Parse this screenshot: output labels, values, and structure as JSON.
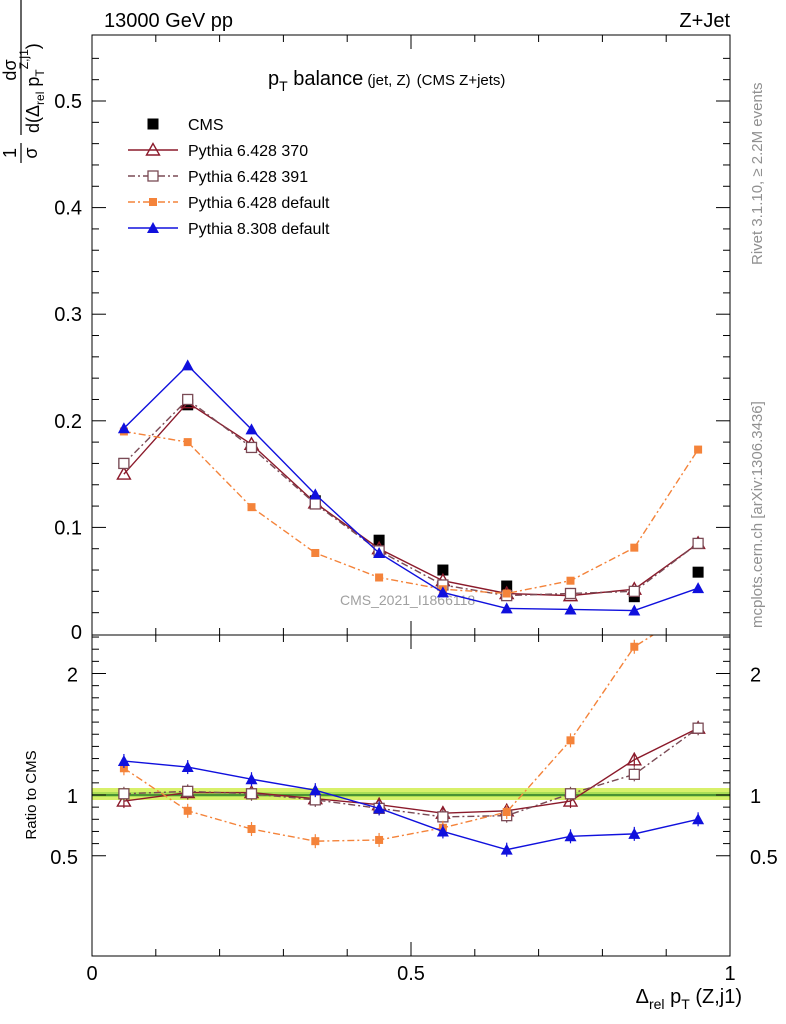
{
  "header": {
    "left": "13000 GeV pp",
    "right": "Z+Jet"
  },
  "side_text": {
    "rivet": "Rivet 3.1.10, ≥ 2.2M events",
    "mcplots": "mcplots.cern.ch [arXiv:1306.3436]"
  },
  "watermark": "CMS_2021_I1866118",
  "colors": {
    "cms": "#000000",
    "p370": "#8b1a2b",
    "p391": "#7a4a55",
    "p6def": "#f4833a",
    "p8def": "#1010dd",
    "band_outer": "#d8f06a",
    "band_inner": "#aade55",
    "ref_line": "#2a7a2a"
  },
  "chart_data": [
    {
      "type": "line",
      "title_main": "p",
      "title_sub": "T",
      "title_word": " balance",
      "title_small": "(jet, Z)",
      "title_tail": "(CMS Z+jets)",
      "ylabel": "1/σ dσ/d(Δrel pT^{Z,j1})",
      "xlim": [
        0,
        1
      ],
      "ylim": [
        0,
        0.56
      ],
      "yticks": [
        "0.1",
        "0.2",
        "0.3",
        "0.4",
        "0.5"
      ],
      "ytick_values": [
        0.1,
        0.2,
        0.3,
        0.4,
        0.5
      ],
      "ybottom_label": "0",
      "x": [
        0.05,
        0.15,
        0.25,
        0.35,
        0.45,
        0.55,
        0.65,
        0.75,
        0.85,
        0.95
      ],
      "legend": [
        "CMS",
        "Pythia 6.428 370",
        "Pythia 6.428 391",
        "Pythia 6.428 default",
        "Pythia 8.308 default"
      ],
      "series": [
        {
          "name": "CMS",
          "values": [
            0.16,
            0.215,
            0.175,
            0.125,
            0.088,
            0.06,
            0.045,
            0.038,
            0.035,
            0.058
          ]
        },
        {
          "name": "Pythia 6.428 370",
          "values": [
            0.15,
            0.217,
            0.178,
            0.123,
            0.08,
            0.05,
            0.038,
            0.036,
            0.042,
            0.085
          ]
        },
        {
          "name": "Pythia 6.428 391",
          "values": [
            0.16,
            0.22,
            0.175,
            0.122,
            0.078,
            0.046,
            0.036,
            0.038,
            0.04,
            0.085
          ]
        },
        {
          "name": "Pythia 6.428 default",
          "values": [
            0.19,
            0.18,
            0.119,
            0.076,
            0.053,
            0.042,
            0.038,
            0.05,
            0.081,
            0.173
          ]
        },
        {
          "name": "Pythia 8.308 default",
          "values": [
            0.193,
            0.252,
            0.192,
            0.131,
            0.076,
            0.039,
            0.024,
            0.023,
            0.022,
            0.043
          ]
        }
      ]
    },
    {
      "type": "line",
      "ylabel": "Ratio to CMS",
      "xlabel_delta": "Δ",
      "xlabel_rel": "rel",
      "xlabel_p": " p",
      "xlabel_T": "T",
      "xlabel_tail": " (Z,j1)",
      "xlim": [
        0,
        1
      ],
      "xticks": [
        "0",
        "0.5",
        "1"
      ],
      "xtick_values": [
        0,
        0.5,
        1
      ],
      "ylim": [
        0.34,
        2.35
      ],
      "yticks": [
        "0.5",
        "1",
        "2"
      ],
      "ytick_values": [
        0.5,
        1,
        2
      ],
      "x": [
        0.05,
        0.15,
        0.25,
        0.35,
        0.45,
        0.55,
        0.65,
        0.75,
        0.85,
        0.95
      ],
      "series": [
        {
          "name": "Pythia 6.428 370",
          "values": [
            0.95,
            1.02,
            1.02,
            0.97,
            0.92,
            0.85,
            0.87,
            0.95,
            1.29,
            1.55
          ]
        },
        {
          "name": "Pythia 6.428 391",
          "values": [
            1.01,
            1.03,
            1.01,
            0.96,
            0.89,
            0.82,
            0.83,
            1.01,
            1.17,
            1.55
          ]
        },
        {
          "name": "Pythia 6.428 default",
          "values": [
            1.22,
            0.87,
            0.72,
            0.62,
            0.63,
            0.73,
            0.86,
            1.45,
            2.22,
            2.55
          ]
        },
        {
          "name": "Pythia 8.308 default",
          "values": [
            1.28,
            1.23,
            1.13,
            1.04,
            0.89,
            0.7,
            0.55,
            0.66,
            0.68,
            0.8
          ]
        }
      ]
    }
  ]
}
